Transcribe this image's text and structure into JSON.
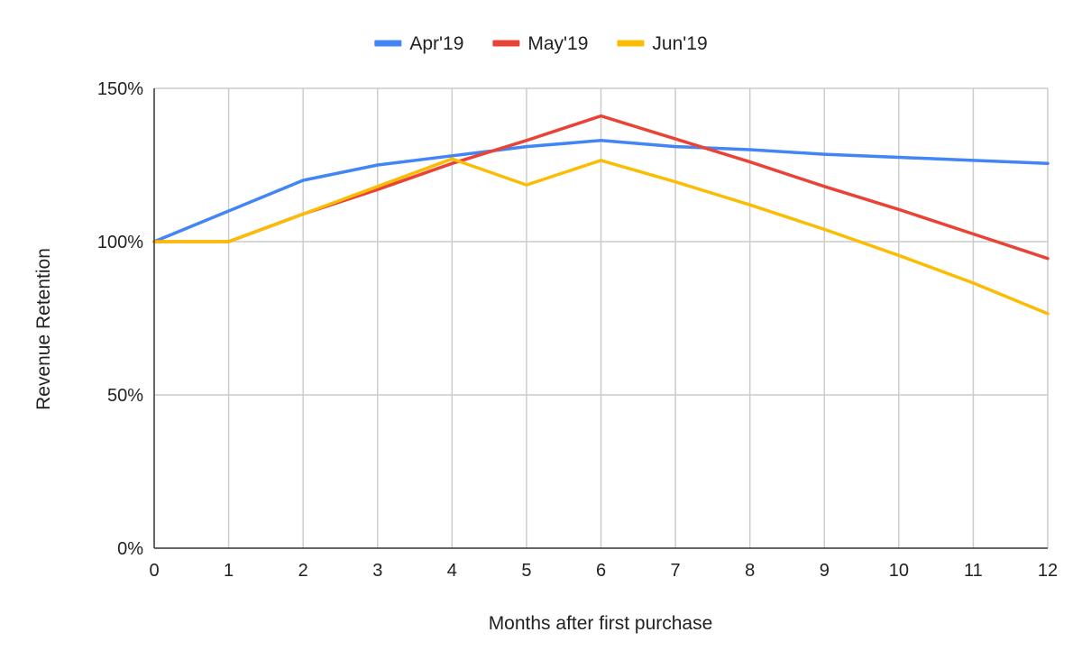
{
  "chart_data": {
    "type": "line",
    "title": "",
    "xlabel": "Months after first purchase",
    "ylabel": "Revenue Retention",
    "x": [
      0,
      1,
      2,
      3,
      4,
      5,
      6,
      7,
      8,
      9,
      10,
      11,
      12
    ],
    "x_tick_labels": [
      "0",
      "1",
      "2",
      "3",
      "4",
      "5",
      "6",
      "7",
      "8",
      "9",
      "10",
      "11",
      "12"
    ],
    "xlim": [
      0,
      12
    ],
    "ylim": [
      0,
      150
    ],
    "y_ticks": [
      0,
      50,
      100,
      150
    ],
    "y_tick_labels": [
      "0%",
      "50%",
      "100%",
      "150%"
    ],
    "grid": true,
    "legend_position": "top",
    "series": [
      {
        "name": "Apr'19",
        "color": "#4285F4",
        "values": [
          100,
          110,
          120,
          125,
          128,
          131,
          133,
          131,
          130,
          128.5,
          127.5,
          126.5,
          125.5
        ]
      },
      {
        "name": "May'19",
        "color": "#EA4335",
        "values": [
          100,
          100,
          109,
          117,
          125.5,
          133,
          141,
          133.5,
          126,
          118,
          110.5,
          102.5,
          94.5
        ]
      },
      {
        "name": "Jun'19",
        "color": "#FBBC04",
        "values": [
          100,
          100,
          109,
          118,
          127,
          118.5,
          126.5,
          119.5,
          112,
          104,
          95.5,
          86.5,
          76.5
        ]
      }
    ]
  }
}
